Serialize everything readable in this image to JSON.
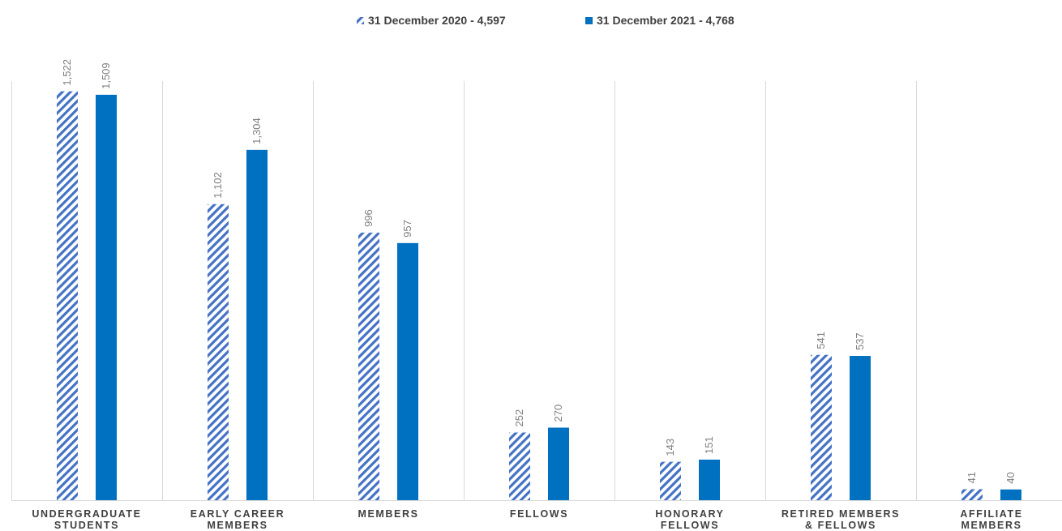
{
  "chart_data": {
    "type": "bar",
    "title": "",
    "xlabel": "",
    "ylabel": "",
    "ylim": [
      0,
      1560
    ],
    "grid": "vertical separators between categories",
    "legend_position": "top-center",
    "categories": [
      [
        "UNDERGRADUATE",
        "STUDENTS"
      ],
      [
        "EARLY CAREER",
        "MEMBERS"
      ],
      [
        "MEMBERS"
      ],
      [
        "FELLOWS"
      ],
      [
        "HONORARY",
        "FELLOWS"
      ],
      [
        "RETIRED MEMBERS",
        "& FELLOWS"
      ],
      [
        "AFFILIATE",
        "MEMBERS"
      ]
    ],
    "series": [
      {
        "name": "31 December 2020 - 4,597",
        "color": "#4472C4",
        "pattern": "diagonal-hatch",
        "values": [
          1522,
          1102,
          996,
          252,
          143,
          541,
          41
        ],
        "labels": [
          "1,522",
          "1,102",
          "996",
          "252",
          "143",
          "541",
          "41"
        ]
      },
      {
        "name": "31 December 2021 - 4,768",
        "color": "#0070C0",
        "pattern": "solid",
        "values": [
          1509,
          1304,
          957,
          270,
          151,
          537,
          40
        ],
        "labels": [
          "1,509",
          "1,304",
          "957",
          "270",
          "151",
          "537",
          "40"
        ]
      }
    ]
  }
}
